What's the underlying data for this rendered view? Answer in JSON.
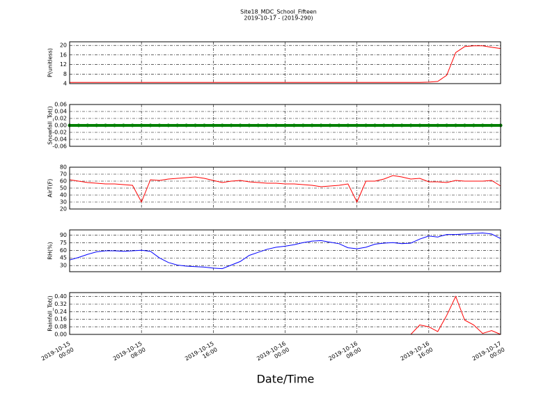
{
  "title": "Site18_MDC_School_Fifteen",
  "subtitle": "2019-10-17 - (2019-290)",
  "xlabel": "Date/Time",
  "chart_data": [
    {
      "type": "line",
      "ylabel": "P(unitless)",
      "color": "#ff0000",
      "grid": true,
      "x": [
        "2019-10-15 00:00",
        "2019-10-15 01:00",
        "2019-10-15 02:00",
        "2019-10-15 03:00",
        "2019-10-15 04:00",
        "2019-10-15 05:00",
        "2019-10-15 06:00",
        "2019-10-15 07:00",
        "2019-10-15 08:00",
        "2019-10-15 09:00",
        "2019-10-15 10:00",
        "2019-10-15 11:00",
        "2019-10-15 12:00",
        "2019-10-15 13:00",
        "2019-10-15 14:00",
        "2019-10-15 15:00",
        "2019-10-15 16:00",
        "2019-10-15 17:00",
        "2019-10-15 18:00",
        "2019-10-15 19:00",
        "2019-10-15 20:00",
        "2019-10-15 21:00",
        "2019-10-15 22:00",
        "2019-10-15 23:00",
        "2019-10-16 00:00",
        "2019-10-16 01:00",
        "2019-10-16 02:00",
        "2019-10-16 03:00",
        "2019-10-16 04:00",
        "2019-10-16 05:00",
        "2019-10-16 06:00",
        "2019-10-16 07:00",
        "2019-10-16 08:00",
        "2019-10-16 09:00",
        "2019-10-16 10:00",
        "2019-10-16 11:00",
        "2019-10-16 12:00",
        "2019-10-16 13:00",
        "2019-10-16 14:00",
        "2019-10-16 15:00",
        "2019-10-16 16:00",
        "2019-10-16 17:00",
        "2019-10-16 18:00",
        "2019-10-16 19:00",
        "2019-10-16 20:00",
        "2019-10-16 21:00",
        "2019-10-16 22:00",
        "2019-10-16 23:00",
        "2019-10-17 00:00"
      ],
      "values": [
        4.5,
        4.5,
        4.5,
        4.5,
        4.5,
        4.5,
        4.5,
        4.5,
        4.5,
        4.5,
        4.5,
        4.5,
        4.5,
        4.5,
        4.5,
        4.5,
        4.5,
        4.5,
        4.5,
        4.5,
        4.5,
        4.5,
        4.5,
        4.5,
        4.5,
        4.5,
        4.5,
        4.5,
        4.5,
        4.5,
        4.5,
        4.5,
        4.5,
        4.5,
        4.5,
        4.5,
        4.5,
        4.5,
        4.5,
        4.5,
        4.6,
        4.9,
        7.5,
        17,
        19.5,
        19.8,
        19.8,
        19.2,
        18.7
      ],
      "xlim": [
        "2019-10-15 00:00",
        "2019-10-17 00:00"
      ],
      "xticks": [
        "2019-10-15 00:00",
        "2019-10-15 08:00",
        "2019-10-15 16:00",
        "2019-10-16 00:00",
        "2019-10-16 08:00",
        "2019-10-16 16:00",
        "2019-10-17 00:00"
      ],
      "ylim": [
        4,
        21.5
      ],
      "yticks": [
        4,
        8,
        12,
        16,
        20
      ]
    },
    {
      "type": "scatter",
      "ylabel": "Snowfall_Tot()",
      "color": "#008000",
      "grid": true,
      "x": [
        "2019-10-15 00:00",
        "2019-10-15 01:00",
        "2019-10-15 02:00",
        "2019-10-15 03:00",
        "2019-10-15 04:00",
        "2019-10-15 05:00",
        "2019-10-15 06:00",
        "2019-10-15 07:00",
        "2019-10-15 08:00",
        "2019-10-15 09:00",
        "2019-10-15 10:00",
        "2019-10-15 11:00",
        "2019-10-15 12:00",
        "2019-10-15 13:00",
        "2019-10-15 14:00",
        "2019-10-15 15:00",
        "2019-10-15 16:00",
        "2019-10-15 17:00",
        "2019-10-15 18:00",
        "2019-10-15 19:00",
        "2019-10-15 20:00",
        "2019-10-15 21:00",
        "2019-10-15 22:00",
        "2019-10-15 23:00",
        "2019-10-16 00:00",
        "2019-10-16 01:00",
        "2019-10-16 02:00",
        "2019-10-16 03:00",
        "2019-10-16 04:00",
        "2019-10-16 05:00",
        "2019-10-16 06:00",
        "2019-10-16 07:00",
        "2019-10-16 08:00",
        "2019-10-16 09:00",
        "2019-10-16 10:00",
        "2019-10-16 11:00",
        "2019-10-16 12:00",
        "2019-10-16 13:00",
        "2019-10-16 14:00",
        "2019-10-16 15:00",
        "2019-10-16 16:00",
        "2019-10-16 17:00",
        "2019-10-16 18:00",
        "2019-10-16 19:00",
        "2019-10-16 20:00",
        "2019-10-16 21:00",
        "2019-10-16 22:00",
        "2019-10-16 23:00",
        "2019-10-17 00:00"
      ],
      "values": [
        0,
        0,
        0,
        0,
        0,
        0,
        0,
        0,
        0,
        0,
        0,
        0,
        0,
        0,
        0,
        0,
        0,
        0,
        0,
        0,
        0,
        0,
        0,
        0,
        0,
        0,
        0,
        0,
        0,
        0,
        0,
        0,
        0,
        0,
        0,
        0,
        0,
        0,
        0,
        0,
        0,
        0,
        0,
        0,
        0,
        0,
        0,
        0,
        0
      ],
      "xlim": [
        "2019-10-15 00:00",
        "2019-10-17 00:00"
      ],
      "xticks": [
        "2019-10-15 00:00",
        "2019-10-15 08:00",
        "2019-10-15 16:00",
        "2019-10-16 00:00",
        "2019-10-16 08:00",
        "2019-10-16 16:00",
        "2019-10-17 00:00"
      ],
      "ylim": [
        -0.06,
        0.06
      ],
      "yticks": [
        -0.06,
        -0.04,
        -0.02,
        {
          "value": 0,
          "label": "0.00"
        },
        0.02,
        0.04,
        0.06
      ]
    },
    {
      "type": "line",
      "ylabel": "AirT(F)",
      "color": "#ff0000",
      "grid": true,
      "x": [
        "2019-10-15 00:00",
        "2019-10-15 01:00",
        "2019-10-15 02:00",
        "2019-10-15 03:00",
        "2019-10-15 04:00",
        "2019-10-15 05:00",
        "2019-10-15 06:00",
        "2019-10-15 07:00",
        "2019-10-15 08:00",
        "2019-10-15 09:00",
        "2019-10-15 10:00",
        "2019-10-15 11:00",
        "2019-10-15 12:00",
        "2019-10-15 13:00",
        "2019-10-15 14:00",
        "2019-10-15 15:00",
        "2019-10-15 16:00",
        "2019-10-15 17:00",
        "2019-10-15 18:00",
        "2019-10-15 19:00",
        "2019-10-15 20:00",
        "2019-10-15 21:00",
        "2019-10-15 22:00",
        "2019-10-15 23:00",
        "2019-10-16 00:00",
        "2019-10-16 01:00",
        "2019-10-16 02:00",
        "2019-10-16 03:00",
        "2019-10-16 04:00",
        "2019-10-16 05:00",
        "2019-10-16 06:00",
        "2019-10-16 07:00",
        "2019-10-16 08:00",
        "2019-10-16 09:00",
        "2019-10-16 10:00",
        "2019-10-16 11:00",
        "2019-10-16 12:00",
        "2019-10-16 13:00",
        "2019-10-16 14:00",
        "2019-10-16 15:00",
        "2019-10-16 16:00",
        "2019-10-16 17:00",
        "2019-10-16 18:00",
        "2019-10-16 19:00",
        "2019-10-16 20:00",
        "2019-10-16 21:00",
        "2019-10-16 22:00",
        "2019-10-16 23:00",
        "2019-10-17 00:00"
      ],
      "values": [
        62,
        60,
        58,
        57,
        56,
        56,
        55,
        54,
        30,
        62,
        61,
        63,
        64,
        65,
        66,
        64,
        61,
        58,
        60,
        61,
        59,
        58,
        57,
        57,
        56,
        56,
        55,
        54,
        52,
        53,
        54,
        56,
        30,
        60,
        60,
        63,
        68,
        66,
        63,
        64,
        59,
        59,
        58,
        61,
        60,
        60,
        60,
        61,
        53
      ],
      "xlim": [
        "2019-10-15 00:00",
        "2019-10-17 00:00"
      ],
      "xticks": [
        "2019-10-15 00:00",
        "2019-10-15 08:00",
        "2019-10-15 16:00",
        "2019-10-16 00:00",
        "2019-10-16 08:00",
        "2019-10-16 16:00",
        "2019-10-17 00:00"
      ],
      "ylim": [
        20,
        80
      ],
      "yticks": [
        20,
        30,
        40,
        50,
        60,
        70,
        80
      ]
    },
    {
      "type": "line",
      "ylabel": "RH(%)",
      "color": "#0000ff",
      "grid": true,
      "x": [
        "2019-10-15 00:00",
        "2019-10-15 01:00",
        "2019-10-15 02:00",
        "2019-10-15 03:00",
        "2019-10-15 04:00",
        "2019-10-15 05:00",
        "2019-10-15 06:00",
        "2019-10-15 07:00",
        "2019-10-15 08:00",
        "2019-10-15 09:00",
        "2019-10-15 10:00",
        "2019-10-15 11:00",
        "2019-10-15 12:00",
        "2019-10-15 13:00",
        "2019-10-15 14:00",
        "2019-10-15 15:00",
        "2019-10-15 16:00",
        "2019-10-15 17:00",
        "2019-10-15 18:00",
        "2019-10-15 19:00",
        "2019-10-15 20:00",
        "2019-10-15 21:00",
        "2019-10-15 22:00",
        "2019-10-15 23:00",
        "2019-10-16 00:00",
        "2019-10-16 01:00",
        "2019-10-16 02:00",
        "2019-10-16 03:00",
        "2019-10-16 04:00",
        "2019-10-16 05:00",
        "2019-10-16 06:00",
        "2019-10-16 07:00",
        "2019-10-16 08:00",
        "2019-10-16 09:00",
        "2019-10-16 10:00",
        "2019-10-16 11:00",
        "2019-10-16 12:00",
        "2019-10-16 13:00",
        "2019-10-16 14:00",
        "2019-10-16 15:00",
        "2019-10-16 16:00",
        "2019-10-16 17:00",
        "2019-10-16 18:00",
        "2019-10-16 19:00",
        "2019-10-16 20:00",
        "2019-10-16 21:00",
        "2019-10-16 22:00",
        "2019-10-16 23:00",
        "2019-10-17 00:00"
      ],
      "values": [
        41,
        46,
        52,
        57,
        59,
        59,
        58,
        59,
        60,
        58,
        45,
        36,
        31,
        29,
        28,
        27,
        25,
        24,
        31,
        38,
        50,
        56,
        62,
        66,
        68,
        71,
        75,
        78,
        79,
        76,
        73,
        65,
        63,
        66,
        72,
        74,
        75,
        73,
        74,
        82,
        88,
        86,
        91,
        91,
        92,
        93,
        94,
        92,
        83
      ],
      "xlim": [
        "2019-10-15 00:00",
        "2019-10-17 00:00"
      ],
      "xticks": [
        "2019-10-15 00:00",
        "2019-10-15 08:00",
        "2019-10-15 16:00",
        "2019-10-16 00:00",
        "2019-10-16 08:00",
        "2019-10-16 16:00",
        "2019-10-17 00:00"
      ],
      "ylim": [
        18,
        100
      ],
      "yticks": [
        30,
        45,
        60,
        75,
        90
      ]
    },
    {
      "type": "line",
      "ylabel": "Rainfall_Tot()",
      "color": "#ff0000",
      "grid": true,
      "x": [
        "2019-10-15 00:00",
        "2019-10-15 01:00",
        "2019-10-15 02:00",
        "2019-10-15 03:00",
        "2019-10-15 04:00",
        "2019-10-15 05:00",
        "2019-10-15 06:00",
        "2019-10-15 07:00",
        "2019-10-15 08:00",
        "2019-10-15 09:00",
        "2019-10-15 10:00",
        "2019-10-15 11:00",
        "2019-10-15 12:00",
        "2019-10-15 13:00",
        "2019-10-15 14:00",
        "2019-10-15 15:00",
        "2019-10-15 16:00",
        "2019-10-15 17:00",
        "2019-10-15 18:00",
        "2019-10-15 19:00",
        "2019-10-15 20:00",
        "2019-10-15 21:00",
        "2019-10-15 22:00",
        "2019-10-15 23:00",
        "2019-10-16 00:00",
        "2019-10-16 01:00",
        "2019-10-16 02:00",
        "2019-10-16 03:00",
        "2019-10-16 04:00",
        "2019-10-16 05:00",
        "2019-10-16 06:00",
        "2019-10-16 07:00",
        "2019-10-16 08:00",
        "2019-10-16 09:00",
        "2019-10-16 10:00",
        "2019-10-16 11:00",
        "2019-10-16 12:00",
        "2019-10-16 13:00",
        "2019-10-16 14:00",
        "2019-10-16 15:00",
        "2019-10-16 16:00",
        "2019-10-16 17:00",
        "2019-10-16 18:00",
        "2019-10-16 19:00",
        "2019-10-16 20:00",
        "2019-10-16 21:00",
        "2019-10-16 22:00",
        "2019-10-16 23:00",
        "2019-10-17 00:00"
      ],
      "values": [
        0,
        0,
        0,
        0,
        0,
        0,
        0,
        0,
        0,
        0,
        0,
        0,
        0,
        0,
        0,
        0,
        0,
        0,
        0,
        0,
        0,
        0,
        0,
        0,
        0,
        0,
        0,
        0,
        0,
        0,
        0,
        0,
        0,
        0,
        0,
        0,
        0,
        0,
        0,
        0.1,
        0.08,
        0.03,
        0.2,
        0.4,
        0.15,
        0.1,
        0.01,
        0.04,
        0
      ],
      "xlim": [
        "2019-10-15 00:00",
        "2019-10-17 00:00"
      ],
      "xticks": [
        "2019-10-15 00:00",
        "2019-10-15 08:00",
        "2019-10-15 16:00",
        "2019-10-16 00:00",
        "2019-10-16 08:00",
        "2019-10-16 16:00",
        "2019-10-17 00:00"
      ],
      "ylim": [
        0,
        0.44
      ],
      "yticks": [
        {
          "value": 0,
          "label": "0.00"
        },
        0.08,
        0.16,
        0.24,
        0.32,
        {
          "value": 0.4,
          "label": "0.40"
        }
      ]
    }
  ]
}
